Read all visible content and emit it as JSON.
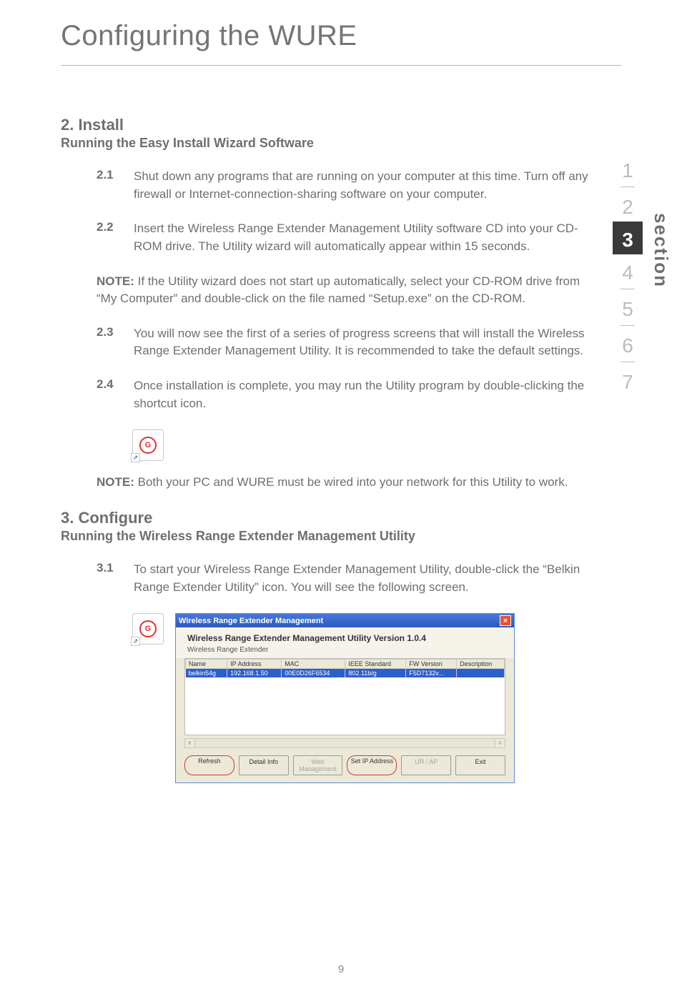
{
  "page": {
    "title": "Configuring the WURE",
    "footer_page_num": "9"
  },
  "install": {
    "heading": "2. Install",
    "subheading": "Running the Easy Install Wizard Software",
    "steps": [
      {
        "num": "2.1",
        "text": "Shut down any programs that are running on your computer at this time. Turn off any firewall or Internet-connection-sharing software on your computer."
      },
      {
        "num": "2.2",
        "text": "Insert the Wireless Range Extender Management Utility software CD into your CD-ROM drive. The Utility wizard will automatically appear within 15 seconds."
      }
    ],
    "note1_label": "NOTE:",
    "note1_text": " If the Utility wizard does not start up automatically, select your CD-ROM drive from “My Computer” and double-click on the file named “Setup.exe” on the CD-ROM.",
    "steps2": [
      {
        "num": "2.3",
        "text": "You will now see the first of a series of progress screens that will install the Wireless Range Extender Management Utility. It is recommended to take the default settings."
      },
      {
        "num": "2.4",
        "text": "Once installation is complete, you may run the Utility program by double-clicking the shortcut icon."
      }
    ],
    "note2_label": "NOTE:",
    "note2_text": " Both your PC and WURE must be wired into your network for this Utility to work."
  },
  "configure": {
    "heading": "3. Configure",
    "subheading": "Running the Wireless Range Extender Management Utility",
    "step": {
      "num": "3.1",
      "text": "To start your Wireless Range Extender Management Utility, double-click the “Belkin Range Extender Utility” icon. You will see the following screen."
    }
  },
  "icon": {
    "glyph": "G",
    "corner": "⇗"
  },
  "app": {
    "titlebar": "Wireless Range Extender Management",
    "close": "×",
    "util_title": "Wireless Range Extender Management Utility Version 1.0.4",
    "sub_label": "Wireless Range Extender",
    "columns": [
      "Name",
      "IP Address",
      "MAC",
      "IEEE Standard",
      "FW Version",
      "Description"
    ],
    "row": [
      "belkin54g",
      "192.168.1.50",
      "00E0D26F6534",
      "802.11b/g",
      "F5D7132v...",
      ""
    ],
    "buttons": {
      "refresh": "Refresh",
      "detail": "Detail Info",
      "web": "Web Management",
      "setip": "Set IP Address",
      "urap": "UR / AP",
      "exit": "Exit"
    },
    "scroll_left": "‹",
    "scroll_right": "›"
  },
  "sidebar": {
    "items": [
      "1",
      "2",
      "3",
      "4",
      "5",
      "6",
      "7"
    ],
    "active_index": 2,
    "label": "section"
  }
}
